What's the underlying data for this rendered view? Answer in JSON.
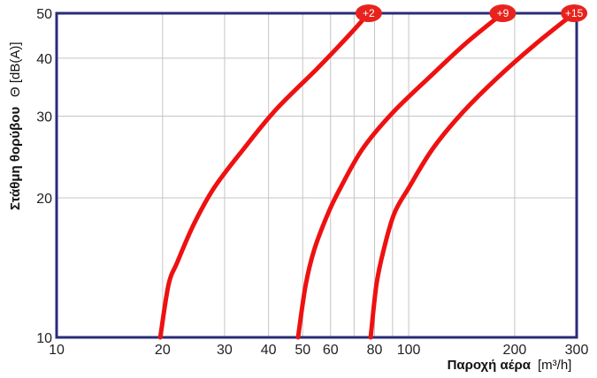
{
  "chart_data": {
    "type": "line",
    "x_scale": "log",
    "y_scale": "log",
    "xlim": [
      10,
      300
    ],
    "ylim": [
      10,
      50
    ],
    "x_ticks": [
      10,
      20,
      30,
      40,
      50,
      60,
      80,
      100,
      200,
      300
    ],
    "x_tick_labels": [
      "10",
      "20",
      "30",
      "40",
      "50",
      "60",
      "80",
      "100",
      "200",
      "300"
    ],
    "y_ticks": [
      10,
      20,
      30,
      40,
      50
    ],
    "y_tick_labels": [
      "10",
      "20",
      "30",
      "40",
      "50"
    ],
    "x_minor_gridlines": [
      70,
      90
    ],
    "grid": true,
    "xlabel": {
      "text": "Παροχή αέρα",
      "unit": "[m³/h]"
    },
    "ylabel": {
      "text": "Στάθμη θορύβου",
      "unit": "Θ [dB(A)]"
    },
    "colors": {
      "series": "#ee1111",
      "frame": "#2b2b7a",
      "grid": "#c4c4c4",
      "badge": "#e8231d"
    },
    "series": [
      {
        "name": "+2",
        "points": [
          [
            19.7,
            10
          ],
          [
            20.8,
            13
          ],
          [
            22,
            14.5
          ],
          [
            24.5,
            17.5
          ],
          [
            28,
            21
          ],
          [
            34,
            25.5
          ],
          [
            42,
            31
          ],
          [
            55,
            38
          ],
          [
            68,
            45
          ],
          [
            77,
            50
          ]
        ]
      },
      {
        "name": "+9",
        "points": [
          [
            48.5,
            10
          ],
          [
            51,
            13
          ],
          [
            54,
            15.5
          ],
          [
            59,
            18.5
          ],
          [
            64,
            21
          ],
          [
            74,
            25.5
          ],
          [
            90,
            30.5
          ],
          [
            115,
            36.5
          ],
          [
            145,
            43
          ],
          [
            185,
            50
          ]
        ]
      },
      {
        "name": "+15",
        "points": [
          [
            78,
            10
          ],
          [
            81,
            13
          ],
          [
            85,
            15.5
          ],
          [
            91,
            18.5
          ],
          [
            100,
            21
          ],
          [
            117,
            25.5
          ],
          [
            142,
            30.5
          ],
          [
            180,
            36.5
          ],
          [
            230,
            43
          ],
          [
            295,
            50
          ]
        ]
      }
    ]
  }
}
